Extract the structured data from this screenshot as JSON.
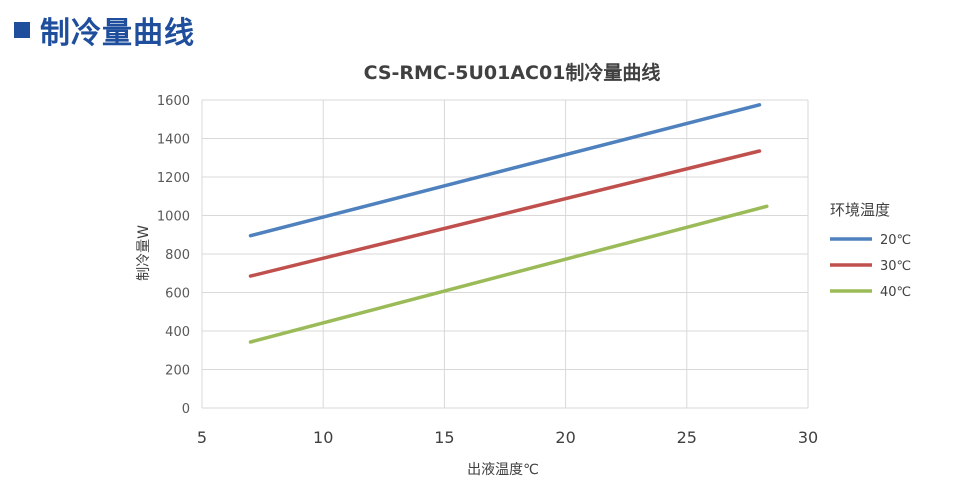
{
  "header": {
    "title": "制冷量曲线"
  },
  "chart_data": {
    "type": "line",
    "title": "CS-RMC-5U01AC01制冷量曲线",
    "xlabel": "出液温度℃",
    "ylabel": "制冷量W",
    "xlim": [
      5,
      30
    ],
    "ylim": [
      0,
      1600
    ],
    "xticks": [
      5,
      10,
      15,
      20,
      25,
      30
    ],
    "yticks": [
      0,
      200,
      400,
      600,
      800,
      1000,
      1200,
      1400,
      1600
    ],
    "grid": true,
    "legend": {
      "title": "环境温度",
      "position": "right"
    },
    "series": [
      {
        "name": "20℃",
        "color": "#4e81bd",
        "x": [
          7,
          28
        ],
        "y": [
          895,
          1575
        ]
      },
      {
        "name": "30℃",
        "color": "#c0504d",
        "x": [
          7,
          28
        ],
        "y": [
          685,
          1335
        ]
      },
      {
        "name": "40℃",
        "color": "#9bbb59",
        "x": [
          7,
          28.3
        ],
        "y": [
          343,
          1048
        ]
      }
    ]
  }
}
